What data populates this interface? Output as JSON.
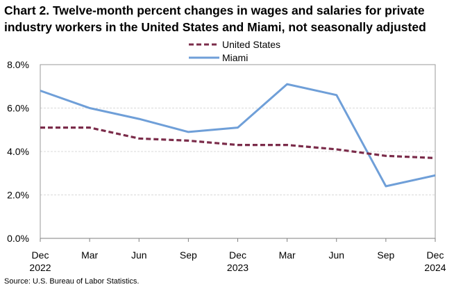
{
  "chart_data": {
    "type": "line",
    "title": "Chart 2. Twelve-month percent changes in wages and salaries for private industry workers in the United States and Miami, not seasonally adjusted",
    "categories": [
      "Dec",
      "Mar",
      "Jun",
      "Sep",
      "Dec",
      "Mar",
      "Jun",
      "Sep",
      "Dec"
    ],
    "year_labels": [
      {
        "index": 0,
        "label": "2022"
      },
      {
        "index": 4,
        "label": "2023"
      },
      {
        "index": 8,
        "label": "2024"
      }
    ],
    "series": [
      {
        "name": "United States",
        "color": "#7b2c4a",
        "style": "dashed",
        "values": [
          5.1,
          5.1,
          4.6,
          4.5,
          4.3,
          4.3,
          4.1,
          3.8,
          3.7
        ]
      },
      {
        "name": "Miami",
        "color": "#6f9fd8",
        "style": "solid",
        "values": [
          6.8,
          6.0,
          5.5,
          4.9,
          5.1,
          7.1,
          6.6,
          2.4,
          2.9
        ]
      }
    ],
    "y_ticks": [
      0,
      2,
      4,
      6,
      8
    ],
    "y_tick_labels": [
      "0.0%",
      "2.0%",
      "4.0%",
      "6.0%",
      "8.0%"
    ],
    "ylim": [
      0,
      8
    ],
    "xlabel": "",
    "ylabel": "",
    "grid": true,
    "legend": "top-center",
    "source": "Source: U.S. Bureau of Labor Statistics."
  }
}
